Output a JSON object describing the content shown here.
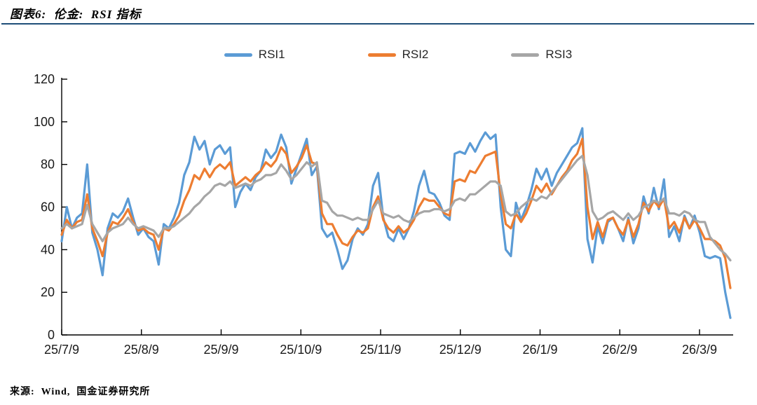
{
  "header": {
    "title": "图表6:  伦金:  RSI 指标"
  },
  "footer": {
    "source": "来源:  Wind,  国金证券研究所"
  },
  "colors": {
    "title_rule": "#1F4E79",
    "axis": "#000000",
    "tick_label": "#1a1a1a",
    "rsi1": "#5B9BD5",
    "rsi2": "#ED7D31",
    "rsi3": "#A6A6A6"
  },
  "chart_data": {
    "type": "line",
    "title": "伦金: RSI指标",
    "legend_position": "top-center",
    "grid": false,
    "ylim": [
      0,
      120
    ],
    "yticks": [
      0,
      20,
      40,
      60,
      80,
      100,
      120
    ],
    "categories": [
      "25/7/9",
      "25/8/9",
      "25/9/9",
      "25/10/9",
      "25/11/9",
      "25/12/9",
      "26/1/9",
      "26/2/9",
      "26/3/9"
    ],
    "series": [
      {
        "name": "RSI1",
        "color": "#5B9BD5",
        "values": [
          44,
          60,
          50,
          55,
          57,
          80,
          48,
          40,
          28,
          50,
          57,
          55,
          58,
          64,
          55,
          47,
          50,
          46,
          44,
          33,
          52,
          50,
          55,
          62,
          75,
          81,
          93,
          87,
          91,
          80,
          87,
          89,
          85,
          88,
          60,
          67,
          71,
          68,
          74,
          77,
          87,
          83,
          86,
          94,
          88,
          71,
          78,
          85,
          92,
          75,
          79,
          50,
          46,
          48,
          40,
          31,
          35,
          45,
          50,
          47,
          52,
          70,
          76,
          55,
          46,
          44,
          50,
          45,
          50,
          58,
          70,
          77,
          67,
          66,
          62,
          56,
          54,
          85,
          86,
          85,
          90,
          86,
          91,
          95,
          92,
          94,
          60,
          40,
          37,
          62,
          54,
          60,
          68,
          78,
          73,
          78,
          70,
          76,
          80,
          84,
          88,
          90,
          97,
          45,
          34,
          51,
          43,
          53,
          55,
          50,
          44,
          55,
          43,
          50,
          65,
          57,
          69,
          59,
          73,
          46,
          51,
          44,
          56,
          50,
          56,
          48,
          37,
          36,
          37,
          36,
          20,
          8
        ]
      },
      {
        "name": "RSI2",
        "color": "#ED7D31",
        "values": [
          47,
          54,
          50,
          53,
          54,
          66,
          50,
          44,
          37,
          48,
          53,
          52,
          55,
          59,
          53,
          49,
          50,
          48,
          47,
          40,
          50,
          49,
          52,
          56,
          63,
          68,
          75,
          73,
          78,
          74,
          78,
          80,
          78,
          81,
          70,
          72,
          74,
          72,
          75,
          77,
          81,
          79,
          82,
          88,
          85,
          76,
          79,
          83,
          89,
          81,
          80,
          57,
          52,
          52,
          47,
          43,
          42,
          46,
          49,
          48,
          50,
          60,
          65,
          54,
          50,
          48,
          51,
          48,
          50,
          54,
          60,
          64,
          63,
          63,
          60,
          57,
          56,
          72,
          73,
          72,
          77,
          76,
          80,
          84,
          85,
          86,
          66,
          52,
          50,
          57,
          53,
          57,
          63,
          70,
          67,
          71,
          66,
          70,
          74,
          77,
          82,
          85,
          92,
          60,
          45,
          53,
          46,
          54,
          55,
          50,
          47,
          54,
          46,
          52,
          62,
          58,
          63,
          60,
          64,
          50,
          53,
          48,
          55,
          50,
          54,
          50,
          45,
          45,
          44,
          42,
          36,
          22
        ]
      },
      {
        "name": "RSI3",
        "color": "#A6A6A6",
        "values": [
          50,
          52,
          50,
          51,
          52,
          61,
          52,
          48,
          44,
          48,
          50,
          51,
          52,
          55,
          52,
          50,
          51,
          50,
          49,
          46,
          50,
          50,
          51,
          53,
          55,
          57,
          60,
          62,
          65,
          67,
          70,
          71,
          70,
          72,
          69,
          70,
          71,
          70,
          72,
          73,
          75,
          75,
          76,
          80,
          77,
          73,
          75,
          78,
          81,
          79,
          81,
          63,
          62,
          58,
          56,
          56,
          55,
          54,
          55,
          54,
          54,
          59,
          63,
          57,
          56,
          55,
          56,
          54,
          53,
          55,
          57,
          58,
          58,
          59,
          59,
          58,
          59,
          63,
          64,
          63,
          66,
          66,
          68,
          70,
          72,
          72,
          70,
          58,
          56,
          57,
          60,
          62,
          64,
          63,
          65,
          64,
          67,
          70,
          73,
          76,
          79,
          82,
          84,
          75,
          58,
          54,
          55,
          57,
          58,
          56,
          54,
          57,
          54,
          56,
          60,
          61,
          63,
          62,
          64,
          57,
          57,
          56,
          58,
          57,
          54,
          53,
          53,
          46,
          43,
          40,
          38,
          35
        ]
      }
    ]
  }
}
